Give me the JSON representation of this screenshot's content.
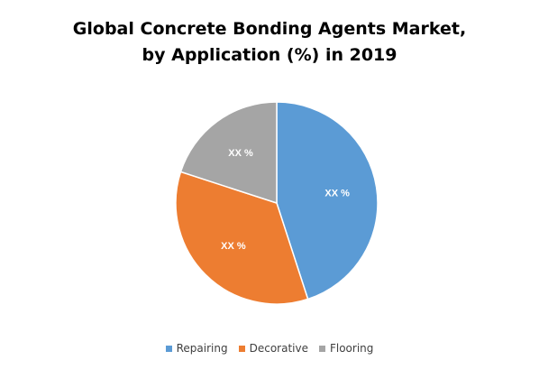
{
  "title": {
    "line1": "Global Concrete Bonding Agents Market,",
    "line2": "by Application (%) in 2019"
  },
  "chart_data": {
    "type": "pie",
    "title": "Global Concrete Bonding Agents Market, by Application (%) in 2019",
    "slices": [
      {
        "name": "Repairing",
        "value": 45,
        "label": "XX %",
        "color": "#5b9bd5"
      },
      {
        "name": "Decorative",
        "value": 35,
        "label": "XX %",
        "color": "#ed7d31"
      },
      {
        "name": "Flooring",
        "value": 20,
        "label": "XX %",
        "color": "#a5a5a5"
      }
    ],
    "legend_position": "bottom"
  }
}
